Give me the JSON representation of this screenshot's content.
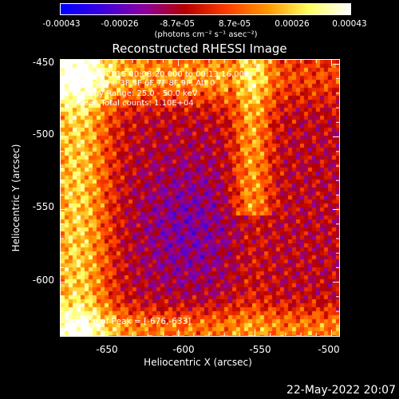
{
  "chart_data": {
    "type": "heatmap",
    "title": "Reconstructed RHESSI Image",
    "xlabel": "Heliocentric X (arcsec)",
    "ylabel": "Heliocentric Y (arcsec)",
    "xlim": [
      -677,
      -495
    ],
    "ylim": [
      -637,
      -447
    ],
    "x_ticks": [
      "-650",
      "-600",
      "-550",
      "-500"
    ],
    "x_tick_values": [
      -650,
      -600,
      -550,
      -500
    ],
    "y_ticks": [
      "-450",
      "-500",
      "-550",
      "-600"
    ],
    "y_tick_values": [
      -450,
      -500,
      -550,
      -600
    ],
    "colorbar": {
      "ticks": [
        "-0.00043",
        "-0.00026",
        "-8.7e-05",
        "8.7e-05",
        "0.00026",
        "0.00043"
      ],
      "tick_values": [
        -0.00043,
        -0.00026,
        -8.7e-05,
        8.7e-05,
        0.00026,
        0.00043
      ],
      "range": [
        -0.00043,
        0.00043
      ],
      "unit_label": "(photons cm⁻² s⁻¹ asec⁻²)",
      "colormap": [
        "#0000ff",
        "#3c00e0",
        "#8c00a0",
        "#b40000",
        "#ff3c00",
        "#ff9600",
        "#ffff60",
        "#ffffff"
      ]
    },
    "annotations": [
      "8-Aug-2015 00:08:20.000 to 00:13:16.000",
      "Detectors: 3F 5F 6F 7F 8F 9F, Att 0",
      "Energy Range: 25.0 - 50.0 keV",
      "Clean     Total counts: 1.10E+04"
    ],
    "peak_label": "Position of Peak = [-676,-633]",
    "peak": [
      -676,
      -633
    ]
  },
  "footer": {
    "date": "22-May-2022 20:07"
  }
}
